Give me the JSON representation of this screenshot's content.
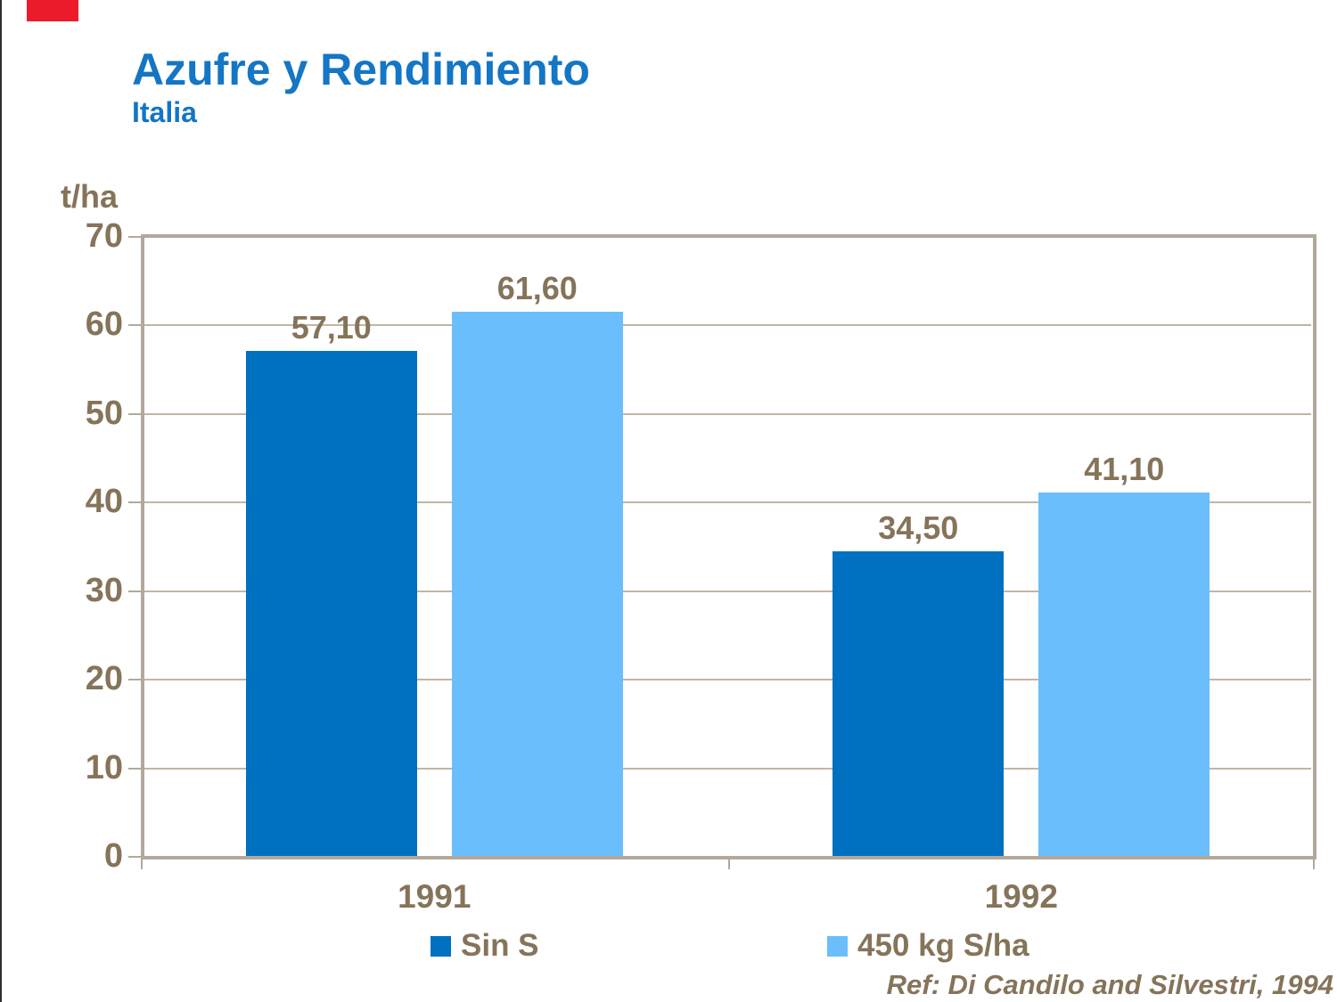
{
  "header": {
    "title": "Azufre y Rendimiento",
    "subtitle": "Italia"
  },
  "colors": {
    "title_blue": "#1476C4",
    "axis_text_brown": "#85745A",
    "frame_line": "#B3A89C",
    "gridline": "#C1B5A4",
    "series1_dark_blue": "#0070C0",
    "series2_light_blue": "#6BBEFC",
    "corner_mark_red": "#EC1B2B",
    "background": "#FFFFFF"
  },
  "chart_data": {
    "type": "bar",
    "title": "Azufre y Rendimiento",
    "subtitle": "Italia",
    "unit_label": "t/ha",
    "categories": [
      "1991",
      "1992"
    ],
    "series": [
      {
        "name": "Sin S",
        "color": "#0070C0",
        "values": [
          57.1,
          34.5
        ],
        "value_labels": [
          "57,10",
          "34,50"
        ]
      },
      {
        "name": "450 kg S/ha",
        "color": "#6BBEFC",
        "values": [
          61.6,
          41.1
        ],
        "value_labels": [
          "61,60",
          "41,10"
        ]
      }
    ],
    "ylim": [
      0,
      70
    ],
    "ytick_interval": 10,
    "yticks": [
      "0",
      "10",
      "20",
      "30",
      "40",
      "50",
      "60",
      "70"
    ],
    "grid": true,
    "legend_position": "bottom"
  },
  "footer": {
    "reference": "Ref: Di Candilo and Silvestri, 1994"
  }
}
